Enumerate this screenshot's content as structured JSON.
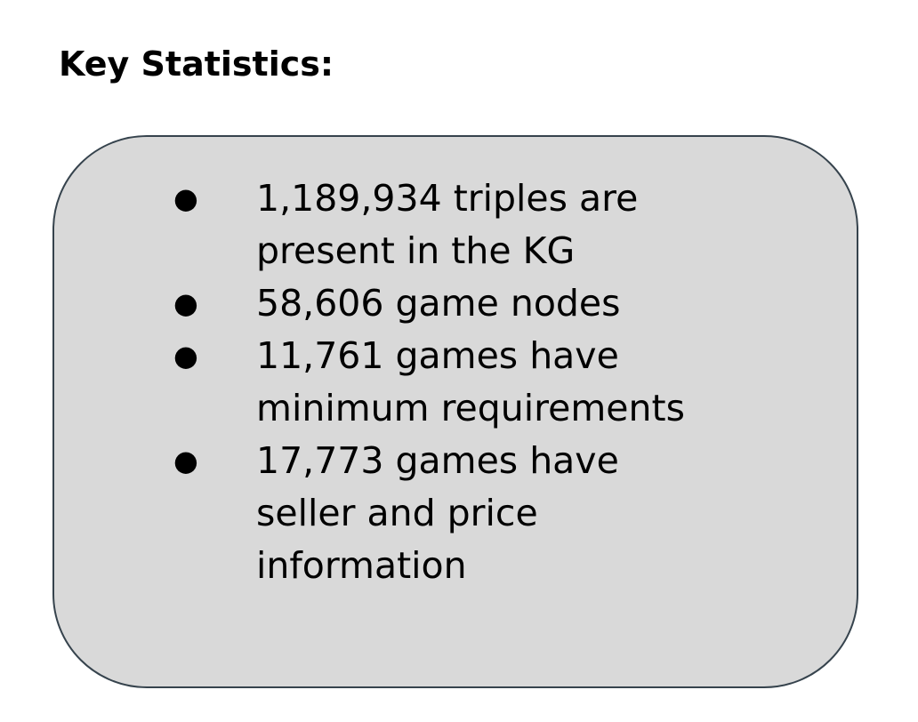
{
  "heading": "Key Statistics:",
  "stats": [
    {
      "bullet": "●",
      "line1": "1,189,934 triples are",
      "line2": "present in the KG",
      "line3": ""
    },
    {
      "bullet": "●",
      "line1": "58,606 game nodes",
      "line2": "",
      "line3": ""
    },
    {
      "bullet": "●",
      "line1": "11,761 games have",
      "line2": "minimum requirements",
      "line3": ""
    },
    {
      "bullet": "●",
      "line1": "17,773 games have",
      "line2": "seller and price",
      "line3": "information"
    }
  ],
  "colors": {
    "box_fill": "#d9d9d9",
    "box_border": "#36434d",
    "text": "#000000"
  }
}
